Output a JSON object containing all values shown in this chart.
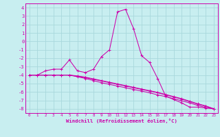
{
  "background_color": "#c8eef0",
  "grid_color": "#a8d8dc",
  "line_color": "#cc00aa",
  "xlabel": "Windchill (Refroidissement éolien,°C)",
  "xlim": [
    -0.5,
    23.5
  ],
  "ylim": [
    -8.5,
    4.5
  ],
  "yticks": [
    4,
    3,
    2,
    1,
    0,
    -1,
    -2,
    -3,
    -4,
    -5,
    -6,
    -7,
    -8
  ],
  "xticks": [
    0,
    1,
    2,
    3,
    4,
    5,
    6,
    7,
    8,
    9,
    10,
    11,
    12,
    13,
    14,
    15,
    16,
    17,
    18,
    19,
    20,
    21,
    22,
    23
  ],
  "series1": [
    [
      0,
      -4.0
    ],
    [
      1,
      -4.0
    ],
    [
      2,
      -3.5
    ],
    [
      3,
      -3.3
    ],
    [
      4,
      -3.3
    ],
    [
      5,
      -2.2
    ],
    [
      6,
      -3.5
    ],
    [
      7,
      -3.7
    ],
    [
      8,
      -3.3
    ],
    [
      9,
      -1.8
    ],
    [
      10,
      -1.0
    ],
    [
      11,
      3.5
    ],
    [
      12,
      3.8
    ],
    [
      13,
      1.5
    ],
    [
      14,
      -1.7
    ],
    [
      15,
      -2.5
    ],
    [
      16,
      -4.4
    ],
    [
      17,
      -6.5
    ],
    [
      18,
      -6.9
    ],
    [
      19,
      -7.3
    ],
    [
      20,
      -7.8
    ],
    [
      21,
      -7.8
    ],
    [
      22,
      -7.9
    ],
    [
      23,
      -8.0
    ]
  ],
  "series2": [
    [
      0,
      -4.0
    ],
    [
      1,
      -4.0
    ],
    [
      2,
      -4.0
    ],
    [
      3,
      -4.0
    ],
    [
      4,
      -4.0
    ],
    [
      5,
      -4.0
    ],
    [
      6,
      -4.15
    ],
    [
      7,
      -4.3
    ],
    [
      8,
      -4.5
    ],
    [
      9,
      -4.7
    ],
    [
      10,
      -4.9
    ],
    [
      11,
      -5.1
    ],
    [
      12,
      -5.3
    ],
    [
      13,
      -5.5
    ],
    [
      14,
      -5.7
    ],
    [
      15,
      -5.9
    ],
    [
      16,
      -6.1
    ],
    [
      17,
      -6.35
    ],
    [
      18,
      -6.6
    ],
    [
      19,
      -6.85
    ],
    [
      20,
      -7.15
    ],
    [
      21,
      -7.45
    ],
    [
      22,
      -7.7
    ],
    [
      23,
      -8.0
    ]
  ],
  "series3": [
    [
      0,
      -4.0
    ],
    [
      1,
      -4.0
    ],
    [
      2,
      -4.0
    ],
    [
      3,
      -4.0
    ],
    [
      4,
      -4.0
    ],
    [
      5,
      -4.0
    ],
    [
      6,
      -4.2
    ],
    [
      7,
      -4.4
    ],
    [
      8,
      -4.65
    ],
    [
      9,
      -4.9
    ],
    [
      10,
      -5.1
    ],
    [
      11,
      -5.3
    ],
    [
      12,
      -5.5
    ],
    [
      13,
      -5.7
    ],
    [
      14,
      -5.9
    ],
    [
      15,
      -6.1
    ],
    [
      16,
      -6.35
    ],
    [
      17,
      -6.55
    ],
    [
      18,
      -6.8
    ],
    [
      19,
      -7.05
    ],
    [
      20,
      -7.3
    ],
    [
      21,
      -7.6
    ],
    [
      22,
      -7.85
    ],
    [
      23,
      -8.0
    ]
  ],
  "series4": [
    [
      0,
      -4.0
    ],
    [
      1,
      -4.0
    ],
    [
      2,
      -4.0
    ],
    [
      3,
      -4.0
    ],
    [
      4,
      -4.0
    ],
    [
      5,
      -4.0
    ],
    [
      6,
      -4.1
    ],
    [
      7,
      -4.25
    ],
    [
      8,
      -4.45
    ],
    [
      9,
      -4.65
    ],
    [
      10,
      -4.85
    ],
    [
      11,
      -5.05
    ],
    [
      12,
      -5.25
    ],
    [
      13,
      -5.45
    ],
    [
      14,
      -5.65
    ],
    [
      15,
      -5.85
    ],
    [
      16,
      -6.05
    ],
    [
      17,
      -6.3
    ],
    [
      18,
      -6.55
    ],
    [
      19,
      -6.8
    ],
    [
      20,
      -7.1
    ],
    [
      21,
      -7.4
    ],
    [
      22,
      -7.65
    ],
    [
      23,
      -8.0
    ]
  ]
}
